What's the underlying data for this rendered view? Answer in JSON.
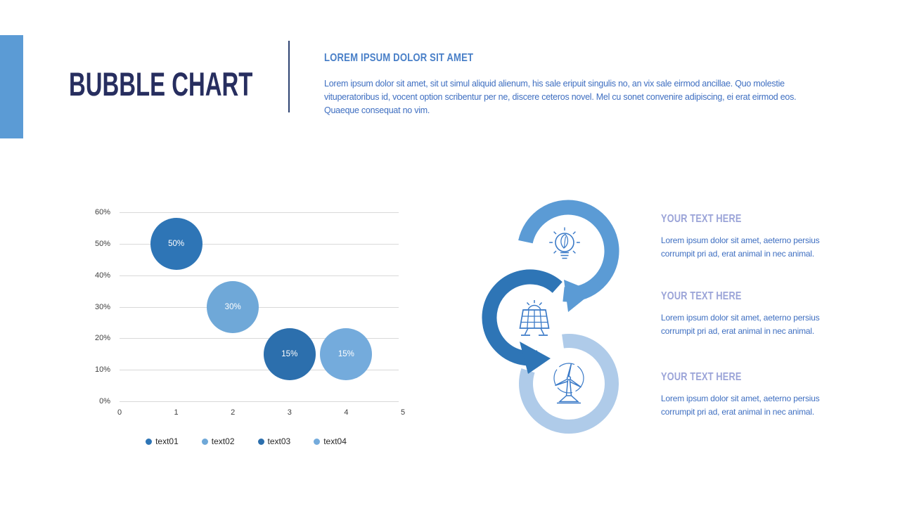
{
  "slide": {
    "title": "BUBBLE CHART"
  },
  "intro": {
    "heading": "LOREM IPSUM DOLOR SIT AMET",
    "body": "Lorem ipsum dolor sit amet, sit ut simul aliquid alienum, his sale eripuit singulis no, an vix sale eirmod ancillae. Quo molestie vituperatoribus id, vocent option scribentur per ne, discere ceteros novel. Mel cu sonet convenire adipiscing, ei erat eirmod eos. Quaeque consequat no vim."
  },
  "colors": {
    "accent_bar": "#5B9BD5",
    "title_navy": "#272E5F",
    "divider": "#2E4372",
    "intro_heading_blue": "#4A80C8",
    "body_blue": "#3F6FC1",
    "section_heading_lavender": "#9BA4D8",
    "grid_gray": "#D9D9D9",
    "axis_label_gray": "#404040",
    "icon_stroke": "#3C7BC8"
  },
  "chart_data": {
    "type": "bubble",
    "title": "",
    "xlabel": "",
    "ylabel": "",
    "xlim": [
      0,
      5
    ],
    "ylim_percent": [
      0,
      60
    ],
    "grid": true,
    "legend_position": "bottom",
    "x_ticks": [
      "0",
      "1",
      "2",
      "3",
      "4",
      "5"
    ],
    "y_ticks": [
      "0%",
      "10%",
      "20%",
      "30%",
      "40%",
      "50%",
      "60%"
    ],
    "series": [
      {
        "name": "text01",
        "x": 1,
        "y_percent": 50,
        "label": "50%",
        "color": "#2E75B6"
      },
      {
        "name": "text02",
        "x": 2,
        "y_percent": 30,
        "label": "30%",
        "color": "#6FA8D8"
      },
      {
        "name": "text03",
        "x": 3,
        "y_percent": 15,
        "label": "15%",
        "color": "#2C6FAD"
      },
      {
        "name": "text04",
        "x": 4,
        "y_percent": 15,
        "label": "15%",
        "color": "#74ABDC"
      }
    ]
  },
  "process": {
    "items": [
      {
        "icon": "eco-bulb-icon",
        "ring_color": "#5B9BD5",
        "heading": "YOUR TEXT HERE",
        "body": "Lorem ipsum dolor sit amet, aeterno persius corrumpit pri ad, erat animal in nec animal."
      },
      {
        "icon": "solar-panel-icon",
        "ring_color": "#2E75B6",
        "heading": "YOUR TEXT HERE",
        "body": "Lorem ipsum dolor sit amet, aeterno persius corrumpit pri ad, erat animal in nec animal."
      },
      {
        "icon": "wind-turbine-icon",
        "ring_color": "#AFCBE9",
        "heading": "YOUR TEXT HERE",
        "body": "Lorem ipsum dolor sit amet, aeterno persius corrumpit pri ad, erat animal in nec animal."
      }
    ]
  }
}
